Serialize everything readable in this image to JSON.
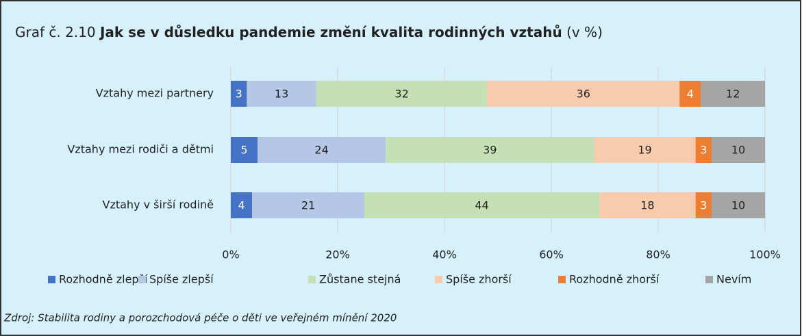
{
  "chart_data": {
    "type": "stacked_barh",
    "title_prefix": "Graf č. 2.10",
    "title": "Jak se v důsledku pandemie změní kvalita rodinných vztahů",
    "title_suffix": "(v %)",
    "source": "Zdroj: Stabilita rodiny a porozchodová péče o děti ve veřejném mínění 2020",
    "categories": [
      "Vztahy mezi partnery",
      "Vztahy mezi rodiči a dětmi",
      "Vztahy v širší rodině"
    ],
    "series": [
      {
        "name": "Rozhodně zlepší",
        "color": "#4472c4",
        "values": [
          3,
          5,
          4
        ]
      },
      {
        "name": "Spíše zlepší",
        "color": "#b4c7e7",
        "values": [
          13,
          24,
          21
        ]
      },
      {
        "name": "Zůstane stejná",
        "color": "#c5e0b4",
        "values": [
          32,
          39,
          44
        ]
      },
      {
        "name": "Spíše zhorší",
        "color": "#f8cbad",
        "values": [
          36,
          19,
          18
        ]
      },
      {
        "name": "Rozhodně zhorší",
        "color": "#ed7d31",
        "values": [
          4,
          3,
          3
        ]
      },
      {
        "name": "Nevím",
        "color": "#a5a5a5",
        "values": [
          12,
          10,
          10
        ]
      }
    ],
    "xlim": [
      0,
      100
    ],
    "xticks": [
      {
        "value": 0,
        "label": "0%"
      },
      {
        "value": 20,
        "label": "20%"
      },
      {
        "value": 40,
        "label": "40%"
      },
      {
        "value": 60,
        "label": "60%"
      },
      {
        "value": 80,
        "label": "80%"
      },
      {
        "value": 100,
        "label": "100%"
      }
    ],
    "grid": true,
    "legend": "bottom"
  }
}
